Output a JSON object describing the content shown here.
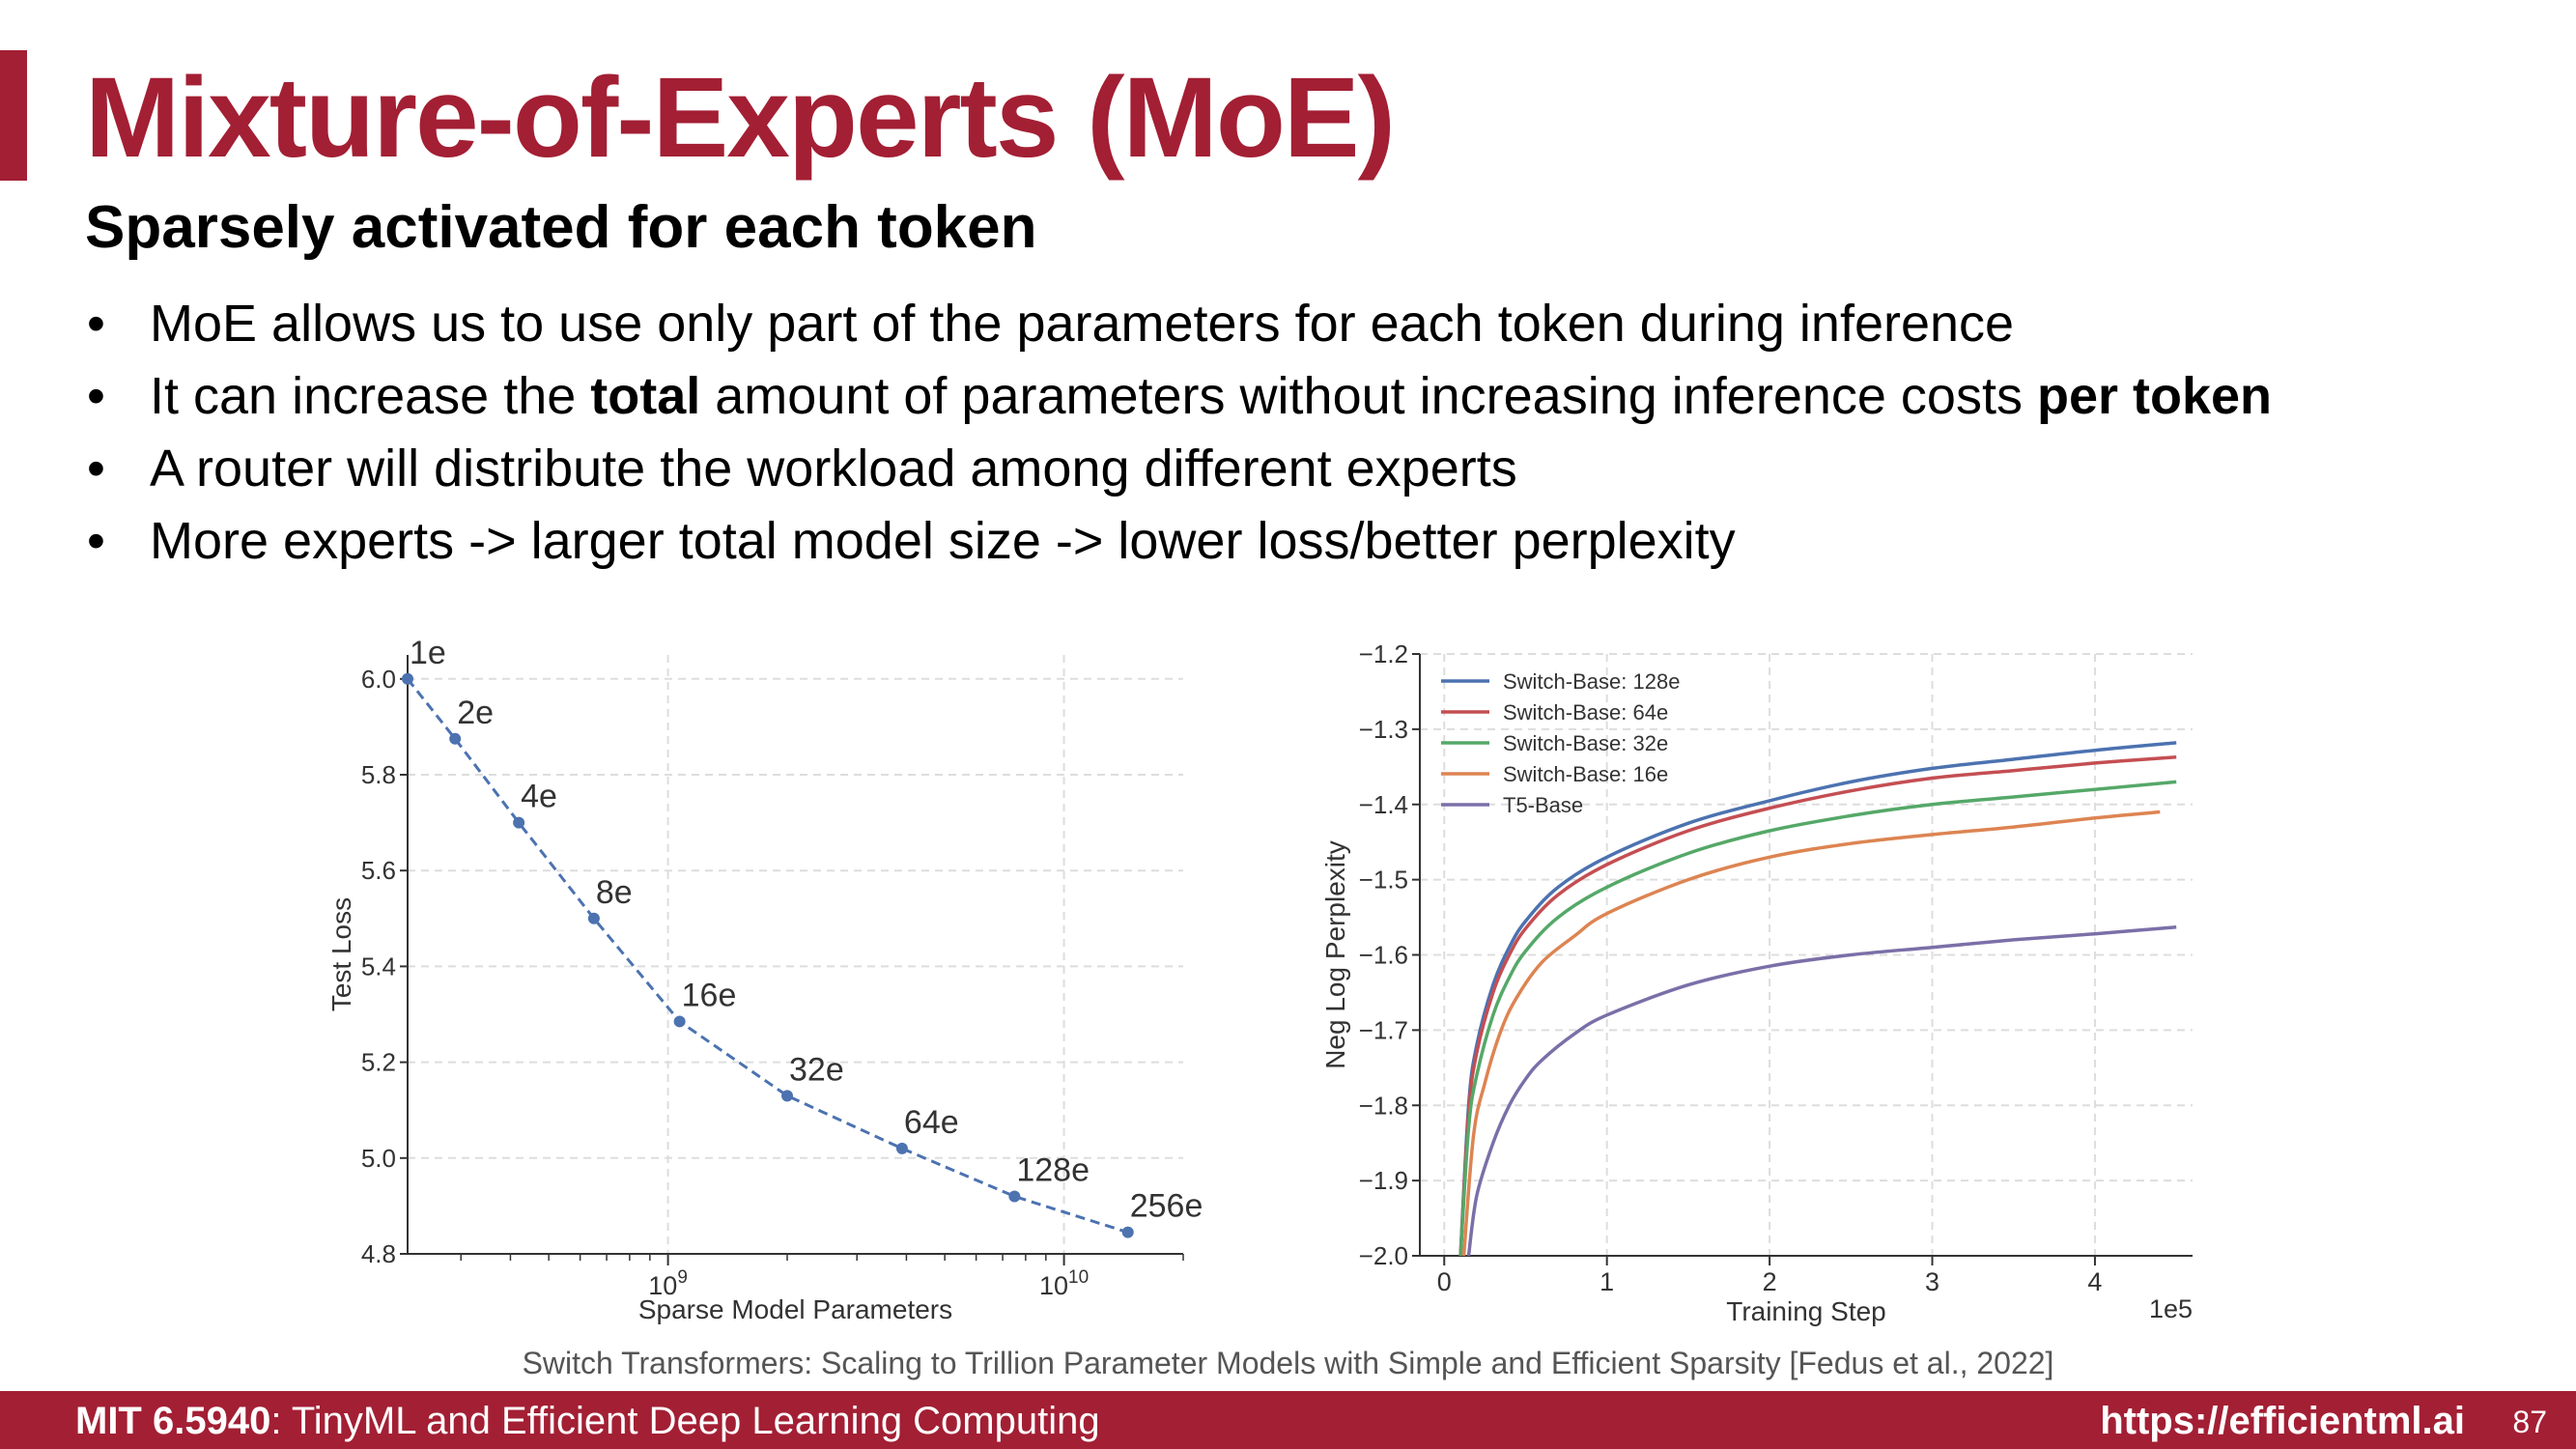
{
  "slide": {
    "title": "Mixture-of-Experts (MoE)",
    "subtitle": "Sparsely activated for each token",
    "bullets": [
      {
        "parts": [
          {
            "text": "MoE allows us to use only part of the parameters for each token during inference",
            "bold": false
          }
        ]
      },
      {
        "parts": [
          {
            "text": "It can increase the ",
            "bold": false
          },
          {
            "text": "total",
            "bold": true
          },
          {
            "text": " amount of parameters without increasing inference costs ",
            "bold": false
          },
          {
            "text": "per token",
            "bold": true
          }
        ]
      },
      {
        "parts": [
          {
            "text": "A router will distribute the workload among different experts",
            "bold": false
          }
        ]
      },
      {
        "parts": [
          {
            "text": "More experts -> larger total model size -> lower loss/better perplexity",
            "bold": false
          }
        ]
      }
    ],
    "caption": "Switch Transformers: Scaling to Trillion Parameter Models with Simple and Efficient Sparsity [Fedus et al., 2022]",
    "footer": {
      "course_code": "MIT 6.5940",
      "course_name": ": TinyML and Efficient Deep Learning Computing",
      "url": "https://efficientml.ai",
      "page": "87"
    },
    "accent_color": "#a31f34"
  },
  "chart_data": [
    {
      "type": "scatter",
      "connected": true,
      "line_style": "dashed",
      "xscale": "log",
      "xlabel": "Sparse Model Parameters",
      "ylabel": "Test Loss",
      "xlim": [
        220000000.0,
        20000000000.0
      ],
      "ylim": [
        4.8,
        6.05
      ],
      "x_ticks": [
        {
          "value": 1000000000.0,
          "base": "10",
          "exp": "9"
        },
        {
          "value": 10000000000.0,
          "base": "10",
          "exp": "10"
        }
      ],
      "y_ticks": [
        6.0,
        5.8,
        5.6,
        5.4,
        5.2,
        5.0,
        4.8
      ],
      "grid": true,
      "color": "#4c72b0",
      "points": [
        {
          "label": "1e",
          "x": 220000000.0,
          "y": 6.0
        },
        {
          "label": "2e",
          "x": 290000000.0,
          "y": 5.875
        },
        {
          "label": "4e",
          "x": 420000000.0,
          "y": 5.7
        },
        {
          "label": "8e",
          "x": 650000000.0,
          "y": 5.5
        },
        {
          "label": "16e",
          "x": 1070000000.0,
          "y": 5.285
        },
        {
          "label": "32e",
          "x": 2000000000.0,
          "y": 5.13
        },
        {
          "label": "64e",
          "x": 3900000000.0,
          "y": 5.02
        },
        {
          "label": "128e",
          "x": 7500000000.0,
          "y": 4.92
        },
        {
          "label": "256e",
          "x": 14500000000.0,
          "y": 4.845
        }
      ]
    },
    {
      "type": "line",
      "xlabel": "Training Step",
      "ylabel": "Neg Log Perplexity",
      "x_multiplier_label": "1e5",
      "xlim": [
        -0.15,
        4.6
      ],
      "ylim": [
        -2.0,
        -1.2
      ],
      "x_ticks": [
        0,
        1,
        2,
        3,
        4
      ],
      "y_ticks": [
        -1.2,
        -1.3,
        -1.4,
        -1.5,
        -1.6,
        -1.7,
        -1.8,
        -1.9,
        -2.0
      ],
      "grid": true,
      "legend_position": "top-left",
      "series": [
        {
          "name": "Switch-Base: 128e",
          "color": "#4c72b0",
          "x": [
            0.1,
            0.15,
            0.2,
            0.3,
            0.4,
            0.5,
            0.7,
            1.0,
            1.5,
            2.0,
            2.5,
            3.0,
            3.5,
            4.0,
            4.5
          ],
          "y": [
            -2.0,
            -1.8,
            -1.72,
            -1.64,
            -1.59,
            -1.555,
            -1.51,
            -1.47,
            -1.425,
            -1.395,
            -1.37,
            -1.352,
            -1.34,
            -1.328,
            -1.318
          ]
        },
        {
          "name": "Switch-Base: 64e",
          "color": "#c44e52",
          "x": [
            0.1,
            0.15,
            0.2,
            0.3,
            0.4,
            0.5,
            0.7,
            1.0,
            1.5,
            2.0,
            2.5,
            3.0,
            3.5,
            4.0,
            4.5
          ],
          "y": [
            -2.0,
            -1.81,
            -1.73,
            -1.65,
            -1.6,
            -1.565,
            -1.52,
            -1.48,
            -1.435,
            -1.405,
            -1.382,
            -1.365,
            -1.355,
            -1.345,
            -1.337
          ]
        },
        {
          "name": "Switch-Base: 32e",
          "color": "#55a868",
          "x": [
            0.1,
            0.15,
            0.2,
            0.3,
            0.4,
            0.5,
            0.7,
            1.0,
            1.5,
            2.0,
            2.5,
            3.0,
            3.5,
            4.0,
            4.5
          ],
          "y": [
            -2.0,
            -1.83,
            -1.76,
            -1.68,
            -1.63,
            -1.595,
            -1.55,
            -1.51,
            -1.465,
            -1.435,
            -1.415,
            -1.4,
            -1.39,
            -1.38,
            -1.37
          ]
        },
        {
          "name": "Switch-Base: 16e",
          "color": "#dd8452",
          "x": [
            0.12,
            0.18,
            0.25,
            0.35,
            0.45,
            0.6,
            0.8,
            1.0,
            1.5,
            2.0,
            2.5,
            3.0,
            3.5,
            4.0,
            4.4
          ],
          "y": [
            -2.0,
            -1.84,
            -1.77,
            -1.7,
            -1.655,
            -1.61,
            -1.575,
            -1.545,
            -1.5,
            -1.47,
            -1.452,
            -1.44,
            -1.43,
            -1.418,
            -1.41
          ]
        },
        {
          "name": "T5-Base",
          "color": "#7b6fa8",
          "x": [
            0.15,
            0.2,
            0.3,
            0.4,
            0.5,
            0.6,
            0.8,
            1.0,
            1.5,
            2.0,
            2.5,
            3.0,
            3.5,
            4.0,
            4.5
          ],
          "y": [
            -2.0,
            -1.92,
            -1.85,
            -1.8,
            -1.765,
            -1.74,
            -1.705,
            -1.68,
            -1.64,
            -1.615,
            -1.6,
            -1.59,
            -1.58,
            -1.572,
            -1.563
          ]
        }
      ]
    }
  ]
}
